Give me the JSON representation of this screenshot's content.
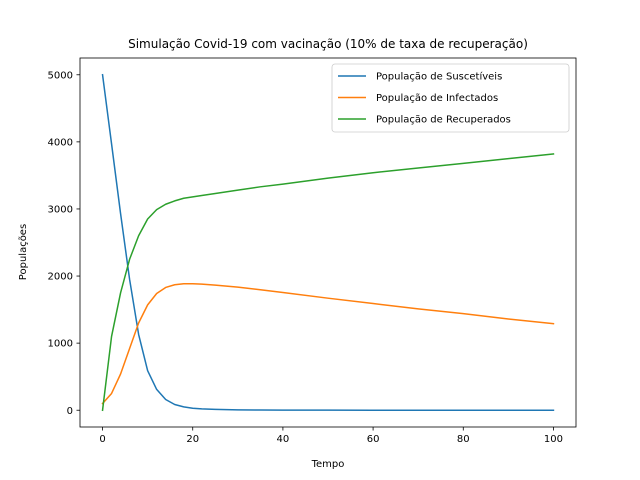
{
  "chart_data": {
    "type": "line",
    "title": "Simulação Covid-19 com vacinação (10% de taxa de recuperação)",
    "xlabel": "Tempo",
    "ylabel": "Populações",
    "xlim": [
      -5,
      105
    ],
    "ylim": [
      -250,
      5250
    ],
    "xticks": [
      0,
      20,
      40,
      60,
      80,
      100
    ],
    "yticks": [
      0,
      1000,
      2000,
      3000,
      4000,
      5000
    ],
    "grid": false,
    "legend_position": "top-right",
    "x": [
      0,
      2,
      4,
      6,
      8,
      10,
      12,
      14,
      16,
      18,
      20,
      22,
      25,
      30,
      35,
      40,
      50,
      60,
      70,
      80,
      90,
      100
    ],
    "series": [
      {
        "name": "População de Suscetíveis",
        "color": "#1f77b4",
        "values": [
          5000,
          3970,
          2930,
          1950,
          1130,
          590,
          310,
          160,
          85,
          50,
          30,
          20,
          12,
          6,
          3,
          2,
          1,
          0,
          0,
          0,
          0,
          0
        ]
      },
      {
        "name": "População de Infectados",
        "color": "#ff7f0e",
        "values": [
          100,
          250,
          540,
          920,
          1300,
          1570,
          1740,
          1830,
          1870,
          1885,
          1885,
          1880,
          1865,
          1835,
          1795,
          1755,
          1670,
          1590,
          1510,
          1440,
          1360,
          1290
        ]
      },
      {
        "name": "População de Recuperados",
        "color": "#2ca02c",
        "values": [
          0,
          1100,
          1750,
          2250,
          2600,
          2850,
          2990,
          3070,
          3120,
          3160,
          3180,
          3200,
          3230,
          3280,
          3330,
          3370,
          3460,
          3540,
          3610,
          3680,
          3750,
          3820
        ]
      }
    ]
  }
}
